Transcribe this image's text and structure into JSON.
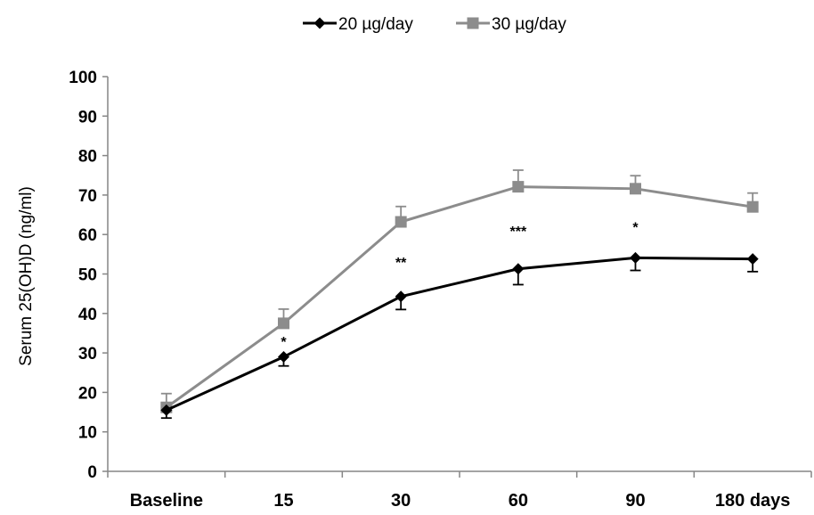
{
  "chart_data": {
    "type": "line",
    "title": "",
    "xlabel": "",
    "ylabel": "Serum 25(OH)D  (ng/ml)",
    "categories": [
      "Baseline",
      "15",
      "30",
      "60",
      "90",
      "180 days"
    ],
    "ylim": [
      0,
      100
    ],
    "yticks": [
      0,
      10,
      20,
      30,
      40,
      50,
      60,
      70,
      80,
      90,
      100
    ],
    "grid": false,
    "legend_position": "top-center",
    "series": [
      {
        "name": "20 µg/day",
        "color": "#000000",
        "marker": "diamond",
        "values": [
          15.5,
          29,
          44.3,
          51.3,
          54.1,
          53.8
        ],
        "error": [
          2.0,
          2.3,
          3.3,
          4.0,
          3.2,
          3.2
        ],
        "error_direction": "down"
      },
      {
        "name": "30 µg/day",
        "color": "#8c8c8c",
        "marker": "square",
        "values": [
          16.2,
          37.5,
          63.2,
          72.1,
          71.6,
          67.0
        ],
        "error": [
          3.5,
          3.6,
          3.9,
          4.2,
          3.3,
          3.5
        ],
        "error_direction": "up"
      }
    ],
    "annotations": [
      {
        "category": "15",
        "text": "*",
        "y": 33
      },
      {
        "category": "30",
        "text": "**",
        "y": 53
      },
      {
        "category": "60",
        "text": "***",
        "y": 61
      },
      {
        "category": "90",
        "text": "*",
        "y": 62
      }
    ]
  }
}
